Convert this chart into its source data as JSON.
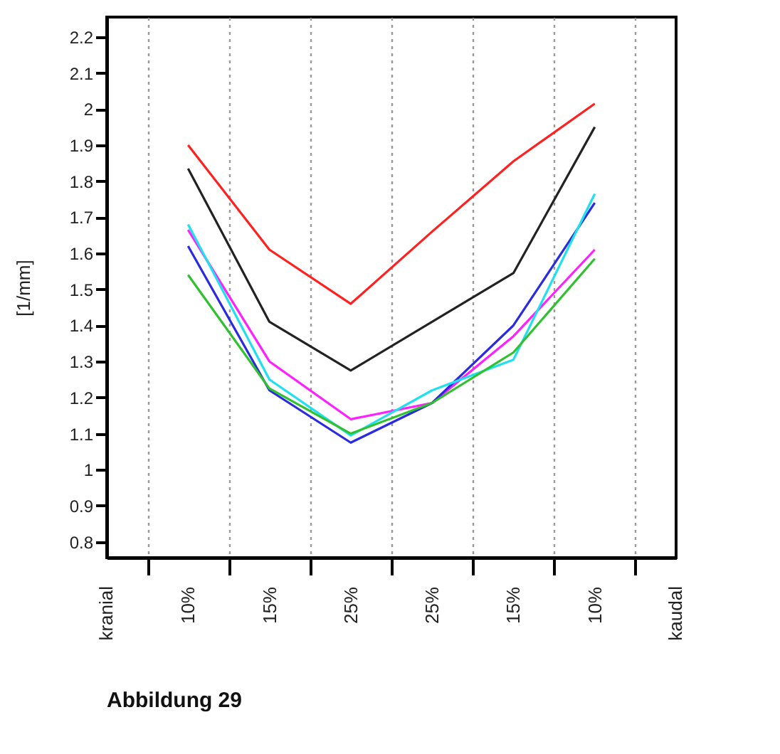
{
  "chart_data": {
    "type": "line",
    "ylabel": "[1/mm]",
    "categories": [
      "10%",
      "15%",
      "25%",
      "25%",
      "15%",
      "10%"
    ],
    "series": [
      {
        "color": "#ff2020",
        "values": [
          1.9,
          1.61,
          1.46,
          1.66,
          1.855,
          2.015
        ]
      },
      {
        "color": "#222222",
        "values": [
          1.835,
          1.41,
          1.275,
          1.41,
          1.545,
          1.95
        ]
      },
      {
        "color": "#ff20ff",
        "values": [
          1.665,
          1.3,
          1.14,
          1.185,
          1.37,
          1.61
        ]
      },
      {
        "color": "#2a2ae0",
        "values": [
          1.62,
          1.22,
          1.075,
          1.185,
          1.4,
          1.74
        ]
      },
      {
        "color": "#20e0f0",
        "values": [
          1.68,
          1.25,
          1.095,
          1.22,
          1.305,
          1.765
        ]
      },
      {
        "color": "#30c030",
        "values": [
          1.54,
          1.225,
          1.1,
          1.185,
          1.325,
          1.585
        ]
      }
    ],
    "ylim": [
      0.756,
      2.255
    ],
    "yticks": [
      0.8,
      0.9,
      1,
      1.1,
      1.2,
      1.3,
      1.4,
      1.5,
      1.6,
      1.7,
      1.8,
      1.9,
      2,
      2.1,
      2.2
    ],
    "annotations": [
      "kranial",
      "kaudal",
      "Abbildung 29"
    ],
    "grid": "x",
    "marker": "none",
    "line_style": "solid"
  }
}
